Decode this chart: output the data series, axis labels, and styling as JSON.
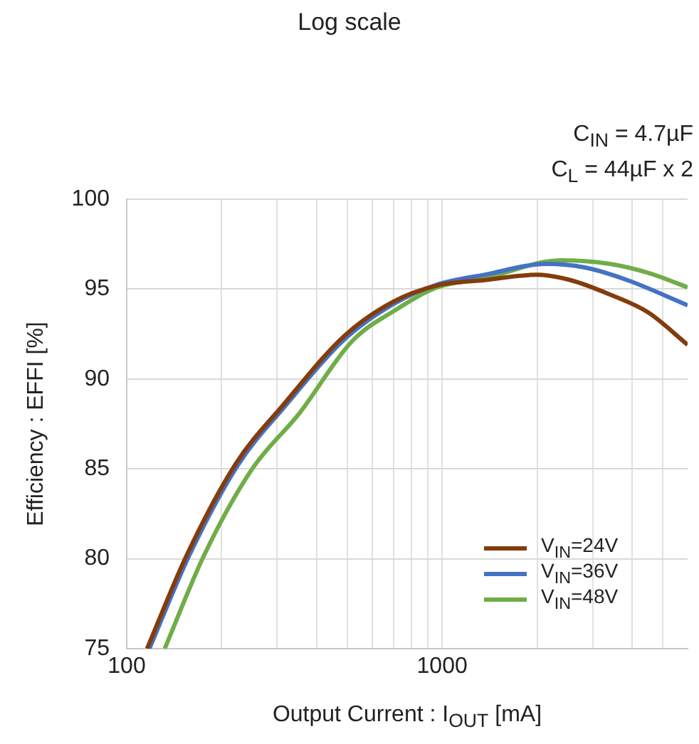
{
  "chart_data": {
    "type": "line",
    "title": "Log scale",
    "xlabel": "Output Current : I$_{OUT}$  [mA]",
    "ylabel": "Efficiency : EFFI  [%]",
    "annotations": [
      "C$_{IN}$ = 4.7µF",
      "C$_{L}$ = 44µF  x 2"
    ],
    "log": "x",
    "xlim": [
      100,
      6000
    ],
    "ylim": [
      75,
      100
    ],
    "xticks": [
      100,
      {
        "value": 200,
        "label": null
      },
      {
        "value": 300,
        "label": null
      },
      {
        "value": 400,
        "label": null
      },
      {
        "value": 500,
        "label": null
      },
      {
        "value": 600,
        "label": null
      },
      {
        "value": 700,
        "label": null
      },
      {
        "value": 800,
        "label": null
      },
      {
        "value": 900,
        "label": null
      },
      1000,
      {
        "value": 2000,
        "label": null
      },
      {
        "value": 3000,
        "label": null
      },
      {
        "value": 4000,
        "label": null
      },
      {
        "value": 5000,
        "label": null
      }
    ],
    "yticks": [
      75,
      80,
      85,
      90,
      95,
      100
    ],
    "grid": true,
    "legend": "bottom right",
    "marker": "none",
    "line_style": "solid",
    "series": [
      {
        "name": "V$_{IN}$=24V",
        "color": "#843c0c",
        "x": [
          116,
          155,
          222,
          315,
          490,
          700,
          965,
          1367,
          2000,
          2550,
          3400,
          4500,
          6000
        ],
        "values": [
          75,
          80.2,
          85.3,
          88.6,
          92.4,
          94.3,
          95.2,
          95.5,
          95.8,
          95.5,
          94.7,
          93.7,
          91.9
        ]
      },
      {
        "name": "V$_{IN}$=36V",
        "color": "#4472c4",
        "x": [
          118,
          158,
          225,
          318,
          497,
          706,
          965,
          1367,
          2140,
          2830,
          3860,
          6000
        ],
        "values": [
          75,
          80.2,
          85.2,
          88.5,
          92.3,
          94.2,
          95.25,
          95.8,
          96.4,
          96.2,
          95.5,
          94.1
        ]
      },
      {
        "name": "V$_{IN}$=48V",
        "color": "#70ad47",
        "x": [
          132,
          176,
          250,
          353,
          518,
          706,
          965,
          1367,
          2370,
          3400,
          4500,
          6000
        ],
        "values": [
          75,
          80.2,
          85,
          88.1,
          92.1,
          93.8,
          95.1,
          95.6,
          96.6,
          96.4,
          95.9,
          95.1
        ]
      }
    ]
  }
}
